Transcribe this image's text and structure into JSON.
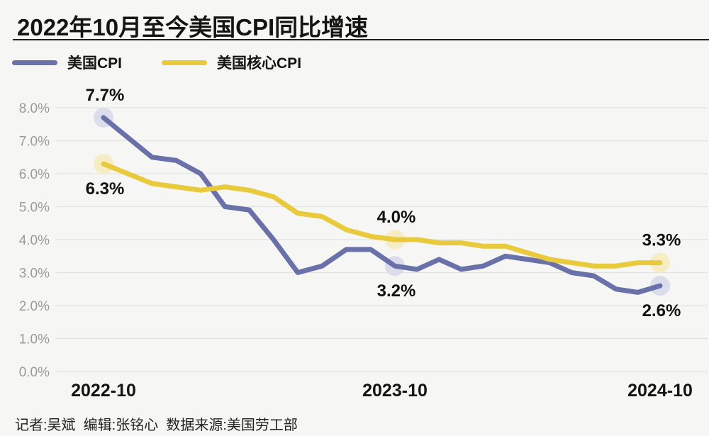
{
  "page": {
    "title": "2022年10月至今美国CPI同比增速",
    "footer": "记者:吴斌  编辑:张铭心  数据来源:美国劳工部"
  },
  "legend": [
    {
      "label": "美国CPI",
      "color": "#6A71A9"
    },
    {
      "label": "美国核心CPI",
      "color": "#E9CA3D"
    }
  ],
  "palette": {
    "background": "#f6f6f4",
    "gridline": "#e2e2e0",
    "axis_label": "#9a9a9a",
    "text": "#141414",
    "divider": "#1d1d1d"
  },
  "chart_data": {
    "type": "line",
    "title": "2022年10月至今美国CPI同比增速",
    "xlabel": "",
    "ylabel": "",
    "grid": "horizontal",
    "legend_position": "top-left",
    "ylim": [
      0,
      8
    ],
    "y_tick_step": 1,
    "y_tick_labels": [
      "0.0%",
      "1.0%",
      "2.0%",
      "3.0%",
      "4.0%",
      "5.0%",
      "6.0%",
      "7.0%",
      "8.0%"
    ],
    "categories": [
      "2022-10",
      "2022-11",
      "2022-12",
      "2023-01",
      "2023-02",
      "2023-03",
      "2023-04",
      "2023-05",
      "2023-06",
      "2023-07",
      "2023-08",
      "2023-09",
      "2023-10",
      "2023-11",
      "2023-12",
      "2024-01",
      "2024-02",
      "2024-03",
      "2024-04",
      "2024-05",
      "2024-06",
      "2024-07",
      "2024-08",
      "2024-09",
      "2024-10"
    ],
    "x_tick_labels": [
      {
        "label": "2022-10",
        "index": 0
      },
      {
        "label": "2023-10",
        "index": 12
      },
      {
        "label": "2024-10",
        "index": 24
      }
    ],
    "series": [
      {
        "name": "美国CPI",
        "color": "#6A71A9",
        "halo_color": "#DBDCEC",
        "values": [
          7.7,
          7.1,
          6.5,
          6.4,
          6.0,
          5.0,
          4.9,
          4.0,
          3.0,
          3.2,
          3.7,
          3.7,
          3.2,
          3.1,
          3.4,
          3.1,
          3.2,
          3.5,
          3.4,
          3.3,
          3.0,
          2.9,
          2.5,
          2.4,
          2.6
        ]
      },
      {
        "name": "美国核心CPI",
        "color": "#E9CA3D",
        "halo_color": "#F6EDC4",
        "values": [
          6.3,
          6.0,
          5.7,
          5.6,
          5.5,
          5.6,
          5.5,
          5.3,
          4.8,
          4.7,
          4.3,
          4.1,
          4.0,
          4.0,
          3.9,
          3.9,
          3.8,
          3.8,
          3.6,
          3.4,
          3.3,
          3.2,
          3.2,
          3.3,
          3.3
        ]
      }
    ],
    "highlight_indices": [
      0,
      12,
      24
    ],
    "annotations": [
      {
        "series": 0,
        "index": 0,
        "label": "7.7%",
        "position": "above"
      },
      {
        "series": 1,
        "index": 0,
        "label": "6.3%",
        "position": "below"
      },
      {
        "series": 1,
        "index": 12,
        "label": "4.0%",
        "position": "above"
      },
      {
        "series": 0,
        "index": 12,
        "label": "3.2%",
        "position": "below"
      },
      {
        "series": 1,
        "index": 24,
        "label": "3.3%",
        "position": "above"
      },
      {
        "series": 0,
        "index": 24,
        "label": "2.6%",
        "position": "below"
      }
    ]
  }
}
